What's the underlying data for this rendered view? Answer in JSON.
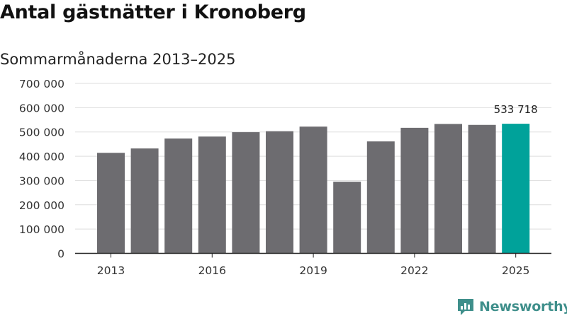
{
  "header": {
    "title": "Antal gästnätter i Kronoberg",
    "subtitle": "Sommarmånaderna 2013–2025"
  },
  "brand": {
    "name": "Newsworthy",
    "color": "#3f8f8b",
    "icon": "newsworthy-logo-icon"
  },
  "chart_data": {
    "type": "bar",
    "title": "Antal gästnätter i Kronoberg",
    "subtitle": "Sommarmånaderna 2013–2025",
    "xlabel": "",
    "ylabel": "",
    "categories": [
      "2013",
      "2014",
      "2015",
      "2016",
      "2017",
      "2018",
      "2019",
      "2020",
      "2021",
      "2022",
      "2023",
      "2024",
      "2025"
    ],
    "values": [
      414000,
      432000,
      473000,
      481000,
      499000,
      503000,
      522000,
      295000,
      461000,
      517000,
      533000,
      529000,
      533718
    ],
    "x_tick_labels": [
      "2013",
      "2016",
      "2019",
      "2022",
      "2025"
    ],
    "y_tick_labels": [
      "0",
      "100 000",
      "200 000",
      "300 000",
      "400 000",
      "500 000",
      "600 000",
      "700 000"
    ],
    "y_ticks": [
      0,
      100000,
      200000,
      300000,
      400000,
      500000,
      600000,
      700000
    ],
    "ylim": [
      0,
      700000
    ],
    "grid": true,
    "legend": "none",
    "highlight": {
      "category": "2025",
      "label": "533 718"
    },
    "colors": {
      "bar": "#6d6c70",
      "highlight": "#00a29a",
      "grid": "#dddddd",
      "axis": "#222222"
    }
  }
}
